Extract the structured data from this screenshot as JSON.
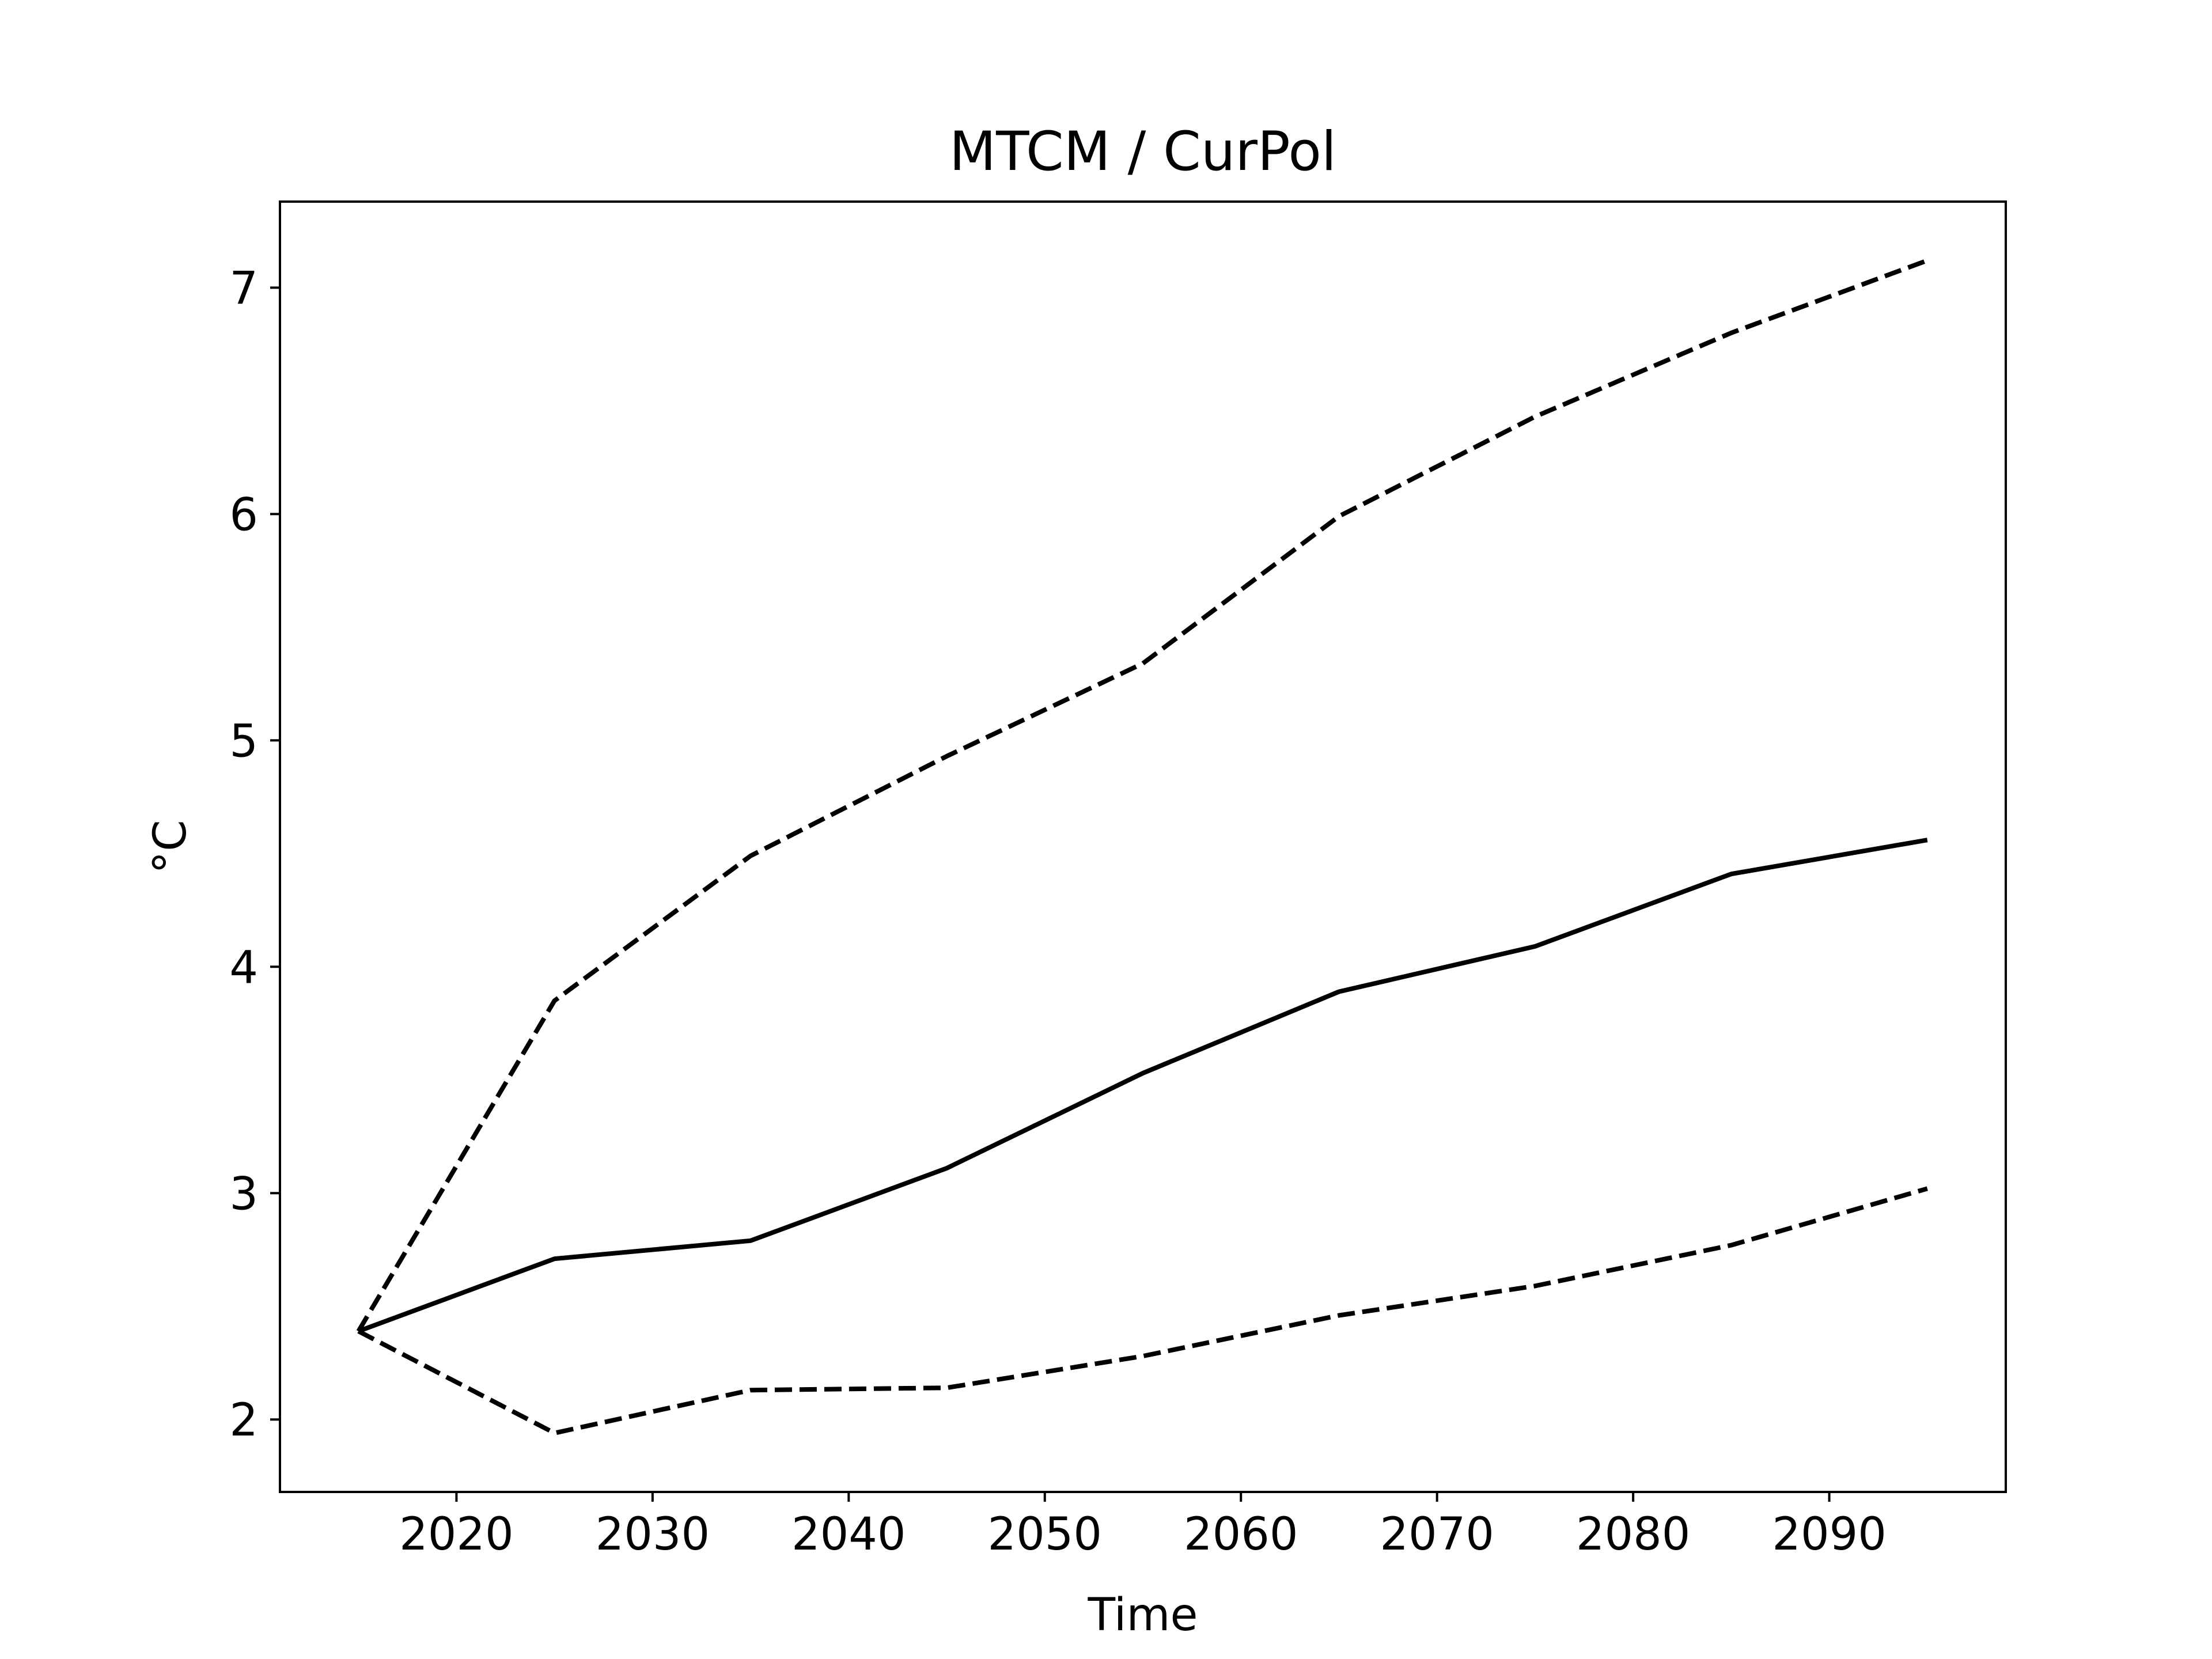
{
  "chart_data": {
    "type": "line",
    "title": "MTCM / CurPol",
    "xlabel": "Time",
    "ylabel": "°C",
    "xlim": [
      2011,
      2099
    ],
    "ylim": [
      1.68,
      7.38
    ],
    "xticks": [
      2020,
      2030,
      2040,
      2050,
      2060,
      2070,
      2080,
      2090
    ],
    "yticks": [
      2,
      3,
      4,
      5,
      6,
      7
    ],
    "grid": false,
    "legend": "none",
    "x": [
      2015,
      2025,
      2035,
      2045,
      2055,
      2065,
      2075,
      2085,
      2095
    ],
    "series": [
      {
        "style": "solid",
        "color": "#000000",
        "values": [
          2.39,
          2.71,
          2.79,
          3.11,
          3.53,
          3.89,
          4.09,
          4.41,
          4.56
        ]
      },
      {
        "style": "dashed",
        "color": "#000000",
        "values": [
          2.39,
          3.85,
          4.49,
          4.93,
          5.34,
          5.99,
          6.43,
          6.8,
          7.12
        ]
      },
      {
        "style": "dashed",
        "color": "#000000",
        "values": [
          2.39,
          1.94,
          2.13,
          2.14,
          2.28,
          2.46,
          2.59,
          2.77,
          3.02
        ]
      }
    ]
  }
}
